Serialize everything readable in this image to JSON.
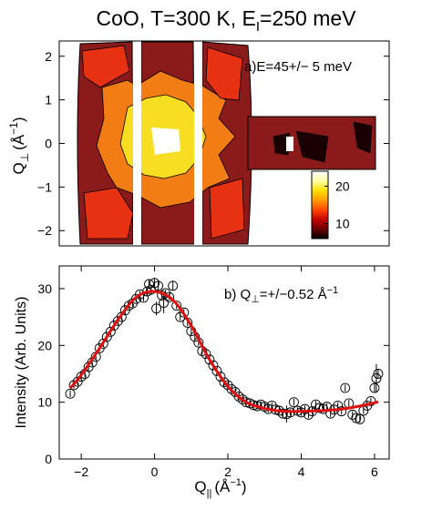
{
  "figure": {
    "title_main": "CoO, T=300 K, E",
    "title_sub": "I",
    "title_tail": "=250 meV"
  },
  "chart_data": [
    {
      "type": "heatmap",
      "panel_label": "a)E=45+/− 5 meV",
      "ylabel_main": "Q",
      "ylabel_sub": "⊥",
      "ylabel_unit": "(Å",
      "ylabel_sup": "−1",
      "ylabel_close": ")",
      "xlim": [
        -2.6,
        6.4
      ],
      "ylim": [
        -2.35,
        2.35
      ],
      "y_ticks": [
        2,
        1,
        0,
        -1,
        -2
      ],
      "y_tick_labels": [
        "2",
        "1",
        "0",
        "−1",
        "−2"
      ],
      "colorbar": {
        "range": [
          6,
          24
        ],
        "ticks": [
          20,
          10
        ],
        "tick_labels": [
          "20",
          "10"
        ],
        "colors": [
          "#000000",
          "#6b0000",
          "#c80000",
          "#ff4a00",
          "#ff9c00",
          "#ffe100",
          "#ffffa8",
          "#ffffff"
        ]
      },
      "colors": {
        "base": "#8b1a1a",
        "dark": "#1a0000",
        "red": "#e63212",
        "orange": "#f27d14",
        "yellow": "#f7de22",
        "white": "#ffffff"
      }
    },
    {
      "type": "scatter",
      "panel_label_main": "b) Q",
      "panel_label_sub": "⊥",
      "panel_label_tail": "=+/−0.52 Å",
      "panel_label_sup": "−1",
      "ylabel": "Intensity (Arb. Units)",
      "xlabel_main": "Q",
      "xlabel_sub": "||",
      "xlabel_unit": "(Å",
      "xlabel_sup": "−1",
      "xlabel_close": ")",
      "xlim": [
        -2.6,
        6.4
      ],
      "ylim": [
        0,
        34
      ],
      "x_ticks": [
        -2,
        0,
        2,
        4,
        6
      ],
      "x_tick_labels": [
        "−2",
        "0",
        "2",
        "4",
        "6"
      ],
      "y_ticks": [
        0,
        10,
        20,
        30
      ],
      "y_tick_labels": [
        "0",
        "10",
        "20",
        "30"
      ],
      "fit_color": "#e01010",
      "fit": {
        "x": [
          -2.3,
          -2.0,
          -1.5,
          -1.0,
          -0.5,
          0.0,
          0.5,
          1.0,
          1.5,
          2.0,
          2.5,
          3.0,
          3.5,
          4.0,
          4.5,
          5.0,
          5.5,
          6.0,
          6.1
        ],
        "y": [
          12.5,
          14.8,
          19.5,
          24.5,
          28.5,
          29.5,
          28.0,
          23.5,
          17.5,
          12.8,
          10.0,
          8.9,
          8.4,
          8.4,
          8.5,
          8.7,
          9.2,
          9.9,
          10.1
        ]
      },
      "points": [
        {
          "x": -2.3,
          "y": 11.5,
          "err": 0.6
        },
        {
          "x": -2.2,
          "y": 13.0,
          "err": 0.6
        },
        {
          "x": -2.1,
          "y": 13.6,
          "err": 0.6
        },
        {
          "x": -2.0,
          "y": 14.5,
          "err": 0.6
        },
        {
          "x": -1.9,
          "y": 15.0,
          "err": 0.6
        },
        {
          "x": -1.8,
          "y": 16.2,
          "err": 0.6
        },
        {
          "x": -1.7,
          "y": 17.0,
          "err": 0.6
        },
        {
          "x": -1.6,
          "y": 18.0,
          "err": 0.6
        },
        {
          "x": -1.5,
          "y": 19.5,
          "err": 0.6
        },
        {
          "x": -1.4,
          "y": 20.3,
          "err": 0.6
        },
        {
          "x": -1.3,
          "y": 21.5,
          "err": 0.6
        },
        {
          "x": -1.2,
          "y": 22.4,
          "err": 0.6
        },
        {
          "x": -1.1,
          "y": 23.5,
          "err": 0.6
        },
        {
          "x": -1.0,
          "y": 24.3,
          "err": 0.6
        },
        {
          "x": -0.9,
          "y": 25.0,
          "err": 0.6
        },
        {
          "x": -0.8,
          "y": 26.2,
          "err": 0.6
        },
        {
          "x": -0.7,
          "y": 27.0,
          "err": 0.6
        },
        {
          "x": -0.6,
          "y": 27.4,
          "err": 0.6
        },
        {
          "x": -0.5,
          "y": 28.2,
          "err": 0.6
        },
        {
          "x": -0.4,
          "y": 29.0,
          "err": 0.6
        },
        {
          "x": -0.3,
          "y": 28.4,
          "err": 0.6
        },
        {
          "x": -0.2,
          "y": 29.5,
          "err": 0.6
        },
        {
          "x": -0.15,
          "y": 30.8,
          "err": 0.9
        },
        {
          "x": -0.1,
          "y": 29.8,
          "err": 0.6
        },
        {
          "x": 0.0,
          "y": 31.0,
          "err": 0.9
        },
        {
          "x": 0.05,
          "y": 26.5,
          "err": 1.2
        },
        {
          "x": 0.1,
          "y": 30.5,
          "err": 0.9
        },
        {
          "x": 0.2,
          "y": 28.8,
          "err": 0.6
        },
        {
          "x": 0.25,
          "y": 27.5,
          "err": 1.8
        },
        {
          "x": 0.3,
          "y": 29.2,
          "err": 0.6
        },
        {
          "x": 0.4,
          "y": 28.5,
          "err": 0.6
        },
        {
          "x": 0.5,
          "y": 30.5,
          "err": 0.9
        },
        {
          "x": 0.6,
          "y": 27.0,
          "err": 0.6
        },
        {
          "x": 0.7,
          "y": 25.0,
          "err": 0.6
        },
        {
          "x": 0.8,
          "y": 25.8,
          "err": 0.6
        },
        {
          "x": 0.9,
          "y": 24.0,
          "err": 0.6
        },
        {
          "x": 1.0,
          "y": 22.5,
          "err": 0.6
        },
        {
          "x": 1.1,
          "y": 21.5,
          "err": 0.6
        },
        {
          "x": 1.2,
          "y": 20.5,
          "err": 0.6
        },
        {
          "x": 1.3,
          "y": 19.0,
          "err": 0.6
        },
        {
          "x": 1.4,
          "y": 18.5,
          "err": 0.6
        },
        {
          "x": 1.5,
          "y": 17.5,
          "err": 0.6
        },
        {
          "x": 1.6,
          "y": 16.5,
          "err": 0.6
        },
        {
          "x": 1.7,
          "y": 15.5,
          "err": 0.6
        },
        {
          "x": 1.8,
          "y": 14.5,
          "err": 0.6
        },
        {
          "x": 1.9,
          "y": 13.5,
          "err": 0.6
        },
        {
          "x": 2.0,
          "y": 13.0,
          "err": 0.6
        },
        {
          "x": 2.1,
          "y": 12.3,
          "err": 0.6
        },
        {
          "x": 2.2,
          "y": 11.8,
          "err": 0.6
        },
        {
          "x": 2.3,
          "y": 11.0,
          "err": 0.6
        },
        {
          "x": 2.4,
          "y": 10.5,
          "err": 0.6
        },
        {
          "x": 2.5,
          "y": 10.0,
          "err": 0.6
        },
        {
          "x": 2.6,
          "y": 9.8,
          "err": 0.6
        },
        {
          "x": 2.7,
          "y": 9.5,
          "err": 0.6
        },
        {
          "x": 2.8,
          "y": 9.3,
          "err": 0.6
        },
        {
          "x": 2.9,
          "y": 9.6,
          "err": 0.6
        },
        {
          "x": 3.0,
          "y": 9.2,
          "err": 0.6
        },
        {
          "x": 3.1,
          "y": 8.8,
          "err": 0.6
        },
        {
          "x": 3.2,
          "y": 9.4,
          "err": 0.6
        },
        {
          "x": 3.3,
          "y": 8.7,
          "err": 0.6
        },
        {
          "x": 3.4,
          "y": 8.5,
          "err": 0.6
        },
        {
          "x": 3.5,
          "y": 8.0,
          "err": 0.6
        },
        {
          "x": 3.6,
          "y": 7.9,
          "err": 1.5
        },
        {
          "x": 3.7,
          "y": 8.2,
          "err": 0.6
        },
        {
          "x": 3.8,
          "y": 10.0,
          "err": 0.6
        },
        {
          "x": 3.9,
          "y": 8.5,
          "err": 0.6
        },
        {
          "x": 4.0,
          "y": 8.2,
          "err": 0.6
        },
        {
          "x": 4.1,
          "y": 8.8,
          "err": 0.6
        },
        {
          "x": 4.2,
          "y": 7.8,
          "err": 0.6
        },
        {
          "x": 4.3,
          "y": 8.4,
          "err": 0.6
        },
        {
          "x": 4.4,
          "y": 9.6,
          "err": 0.6
        },
        {
          "x": 4.5,
          "y": 9.0,
          "err": 0.6
        },
        {
          "x": 4.6,
          "y": 8.8,
          "err": 0.6
        },
        {
          "x": 4.7,
          "y": 9.2,
          "err": 0.6
        },
        {
          "x": 4.8,
          "y": 8.0,
          "err": 0.6
        },
        {
          "x": 4.9,
          "y": 8.7,
          "err": 0.6
        },
        {
          "x": 5.0,
          "y": 9.4,
          "err": 0.6
        },
        {
          "x": 5.1,
          "y": 8.4,
          "err": 0.6
        },
        {
          "x": 5.2,
          "y": 12.5,
          "err": 0.6
        },
        {
          "x": 5.3,
          "y": 9.8,
          "err": 0.6
        },
        {
          "x": 5.4,
          "y": 7.8,
          "err": 0.6
        },
        {
          "x": 5.5,
          "y": 7.2,
          "err": 0.6
        },
        {
          "x": 5.6,
          "y": 7.0,
          "err": 0.6
        },
        {
          "x": 5.7,
          "y": 8.5,
          "err": 0.6
        },
        {
          "x": 5.8,
          "y": 9.4,
          "err": 0.6
        },
        {
          "x": 5.9,
          "y": 10.2,
          "err": 0.6
        },
        {
          "x": 6.0,
          "y": 12.5,
          "err": 0.8
        },
        {
          "x": 6.05,
          "y": 14.2,
          "err": 2.5
        },
        {
          "x": 6.1,
          "y": 15.0,
          "err": 0.8
        }
      ]
    }
  ]
}
